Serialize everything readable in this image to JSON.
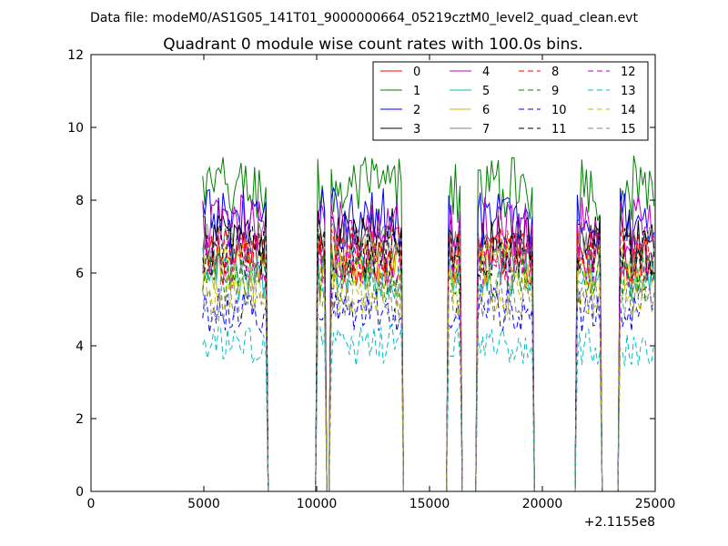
{
  "chart_data": {
    "type": "line",
    "suptitle": "Data file: modeM0/AS1G05_141T01_9000000664_05219cztM0_level2_quad_clean.evt",
    "title": "Quadrant 0 module wise count rates with 100.0s bins.",
    "xlabel": "",
    "ylabel": "",
    "xlim": [
      0,
      25000
    ],
    "ylim": [
      0,
      12
    ],
    "x_offset_label": "+2.1155e8",
    "x_ticks": [
      0,
      5000,
      10000,
      15000,
      20000,
      25000
    ],
    "x_tick_labels": [
      "0",
      "5000",
      "10000",
      "15000",
      "20000",
      "25000"
    ],
    "y_ticks": [
      0,
      2,
      4,
      6,
      8,
      10,
      12
    ],
    "y_tick_labels": [
      "0",
      "2",
      "4",
      "6",
      "8",
      "10",
      "12"
    ],
    "grid": false,
    "legend_position": "top-right",
    "bin_width": 100,
    "on_segments": [
      [
        4950,
        7800
      ],
      [
        10000,
        10350
      ],
      [
        10650,
        13800
      ],
      [
        15800,
        16350
      ],
      [
        17100,
        19600
      ],
      [
        21500,
        22600
      ],
      [
        23400,
        24950
      ]
    ],
    "x_range": [
      4950,
      24950
    ],
    "series": [
      {
        "name": "0",
        "color": "#ff0000",
        "dash": "solid",
        "level": 6.4
      },
      {
        "name": "1",
        "color": "#008000",
        "dash": "solid",
        "level": 8.3
      },
      {
        "name": "2",
        "color": "#0000ff",
        "dash": "solid",
        "level": 7.5
      },
      {
        "name": "3",
        "color": "#000000",
        "dash": "solid",
        "level": 7.0
      },
      {
        "name": "4",
        "color": "#bf00bf",
        "dash": "solid",
        "level": 7.3
      },
      {
        "name": "5",
        "color": "#00bfbf",
        "dash": "solid",
        "level": 6.0
      },
      {
        "name": "6",
        "color": "#bfbf00",
        "dash": "solid",
        "level": 6.2
      },
      {
        "name": "7",
        "color": "#808080",
        "dash": "solid",
        "level": 6.6
      },
      {
        "name": "8",
        "color": "#ff0000",
        "dash": "dashed",
        "level": 6.5
      },
      {
        "name": "9",
        "color": "#008000",
        "dash": "dashed",
        "level": 5.9
      },
      {
        "name": "10",
        "color": "#0000ff",
        "dash": "dashed",
        "level": 5.0
      },
      {
        "name": "11",
        "color": "#000000",
        "dash": "dashed",
        "level": 6.6
      },
      {
        "name": "12",
        "color": "#bf00bf",
        "dash": "dashed",
        "level": 6.3
      },
      {
        "name": "13",
        "color": "#00bfbf",
        "dash": "dashed",
        "level": 4.0
      },
      {
        "name": "14",
        "color": "#bfbf00",
        "dash": "dashed",
        "level": 5.5
      },
      {
        "name": "15",
        "color": "#808080",
        "dash": "dashed",
        "level": 5.3
      }
    ]
  }
}
